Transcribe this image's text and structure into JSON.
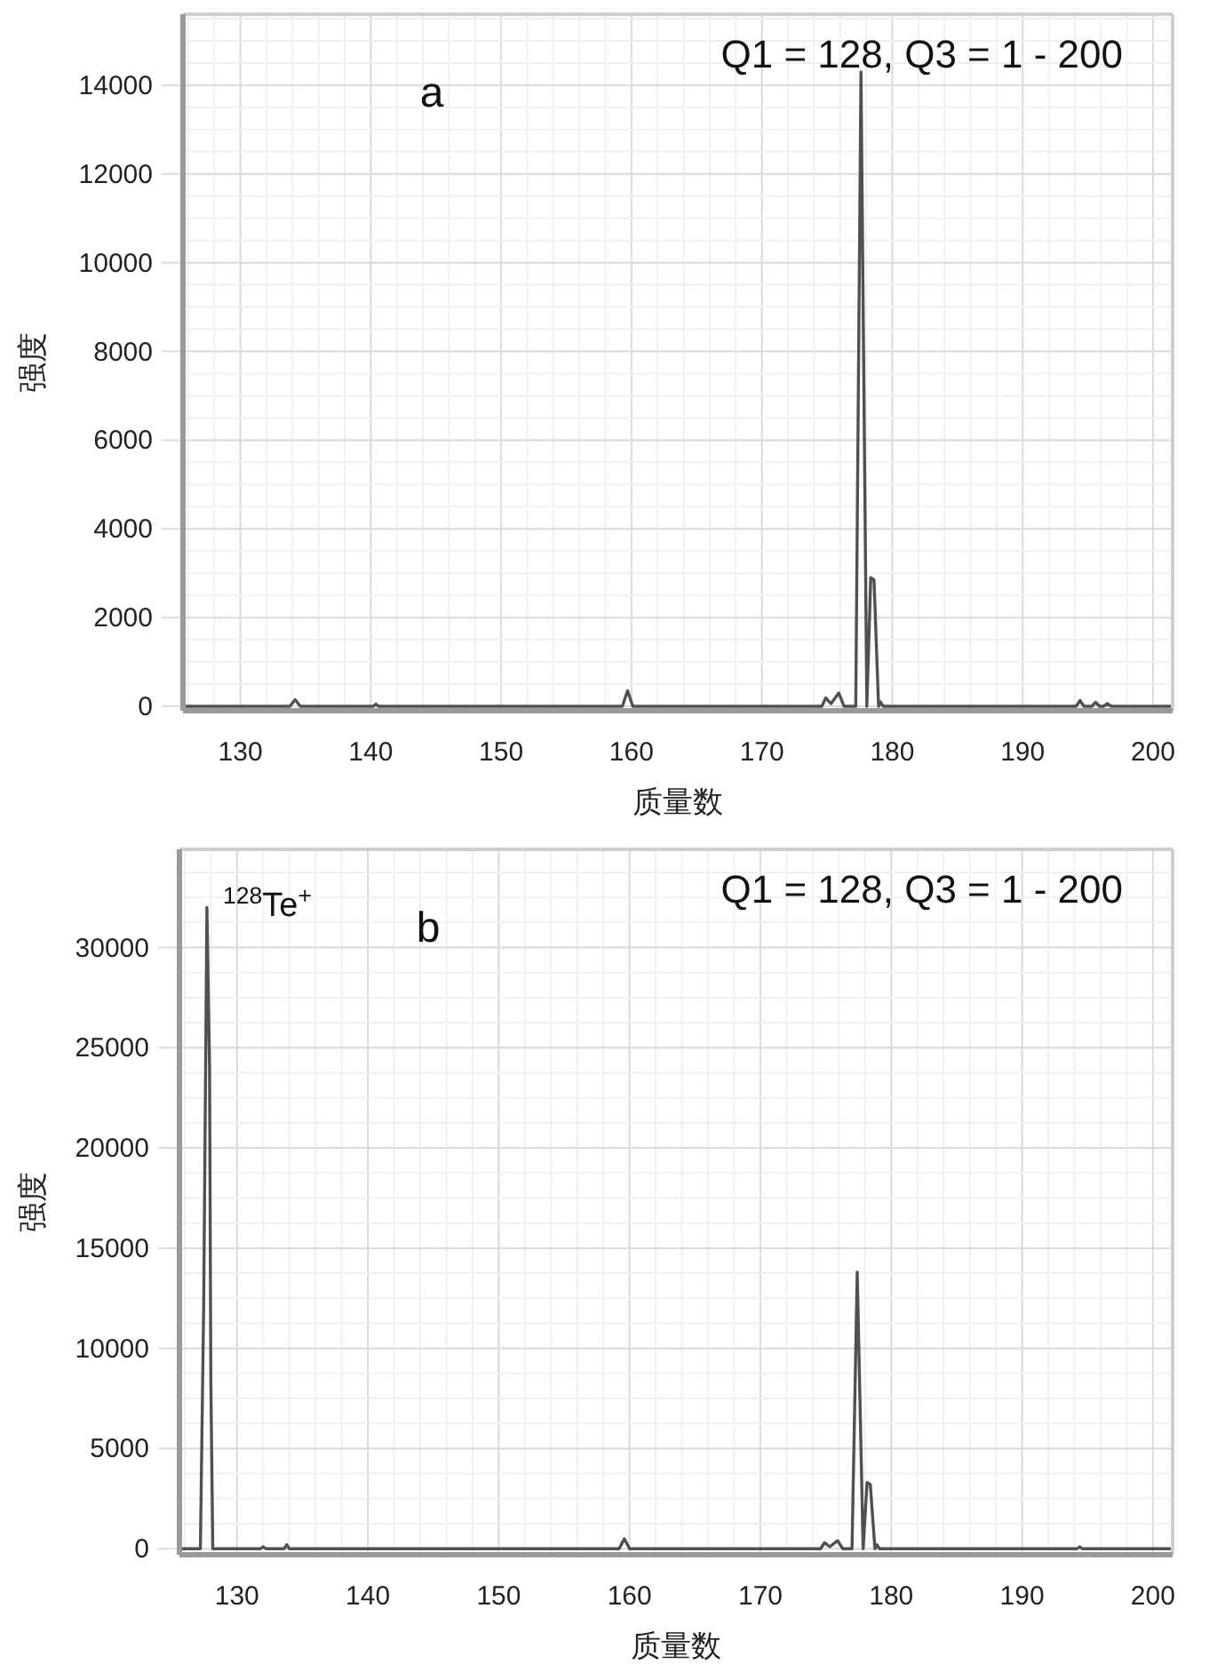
{
  "chart_data": [
    {
      "type": "line",
      "annotations": [
        "Q1 = 128, Q3 = 1 - 200",
        "a"
      ],
      "xlabel": "质量数",
      "ylabel": "强度",
      "color": "#505050",
      "x": [
        125.6,
        133.8,
        134.2,
        134.6,
        140.2,
        140.4,
        140.6,
        159.3,
        159.7,
        160.1,
        174.6,
        174.9,
        175.3,
        175.9,
        176.3,
        177.2,
        177.6,
        178.05,
        178.35,
        178.6,
        178.95,
        179.1,
        179.3,
        194.1,
        194.4,
        194.7,
        195.3,
        195.6,
        195.9,
        196.2,
        196.5,
        196.8,
        201.5
      ],
      "values": [
        0,
        0,
        150,
        0,
        0,
        50,
        0,
        0,
        350,
        0,
        0,
        190,
        60,
        300,
        0,
        0,
        14300,
        0,
        2900,
        2850,
        0,
        100,
        0,
        0,
        130,
        0,
        0,
        90,
        0,
        0,
        60,
        0,
        0
      ],
      "xlim": [
        125.6,
        201.5
      ],
      "ylim": [
        -100,
        15600
      ],
      "xticks": [
        130,
        140,
        150,
        160,
        170,
        180,
        190,
        200
      ],
      "yticks": [
        0,
        2000,
        4000,
        6000,
        8000,
        10000,
        12000,
        14000
      ],
      "grid": true
    },
    {
      "type": "line",
      "annotations": [
        "Q1 = 128, Q3 = 1 - 200",
        "b",
        {
          "text": "$^{128}$Te$^{+}$",
          "x": 127.7,
          "y": 32000
        }
      ],
      "xlabel": "质量数",
      "ylabel": "强度",
      "color": "#505050",
      "x": [
        125.6,
        127.2,
        127.45,
        127.7,
        127.9,
        128.0,
        128.15,
        131.8,
        132.0,
        132.2,
        133.6,
        133.8,
        134.0,
        159.2,
        159.6,
        160.0,
        174.6,
        174.9,
        175.3,
        175.9,
        176.3,
        177.0,
        177.4,
        177.85,
        178.15,
        178.4,
        178.75,
        178.9,
        179.1,
        194.2,
        194.4,
        194.6,
        201.5
      ],
      "values": [
        0,
        0,
        12000,
        32000,
        24000,
        8300,
        0,
        0,
        100,
        0,
        0,
        200,
        0,
        0,
        500,
        0,
        0,
        300,
        100,
        400,
        0,
        0,
        13800,
        0,
        3300,
        3200,
        0,
        200,
        0,
        0,
        100,
        0,
        0
      ],
      "xlim": [
        125.6,
        201.5
      ],
      "ylim": [
        -300,
        34900
      ],
      "xticks": [
        130,
        140,
        150,
        160,
        170,
        180,
        190,
        200
      ],
      "yticks": [
        0,
        5000,
        10000,
        15000,
        20000,
        25000,
        30000
      ],
      "grid": true
    }
  ]
}
